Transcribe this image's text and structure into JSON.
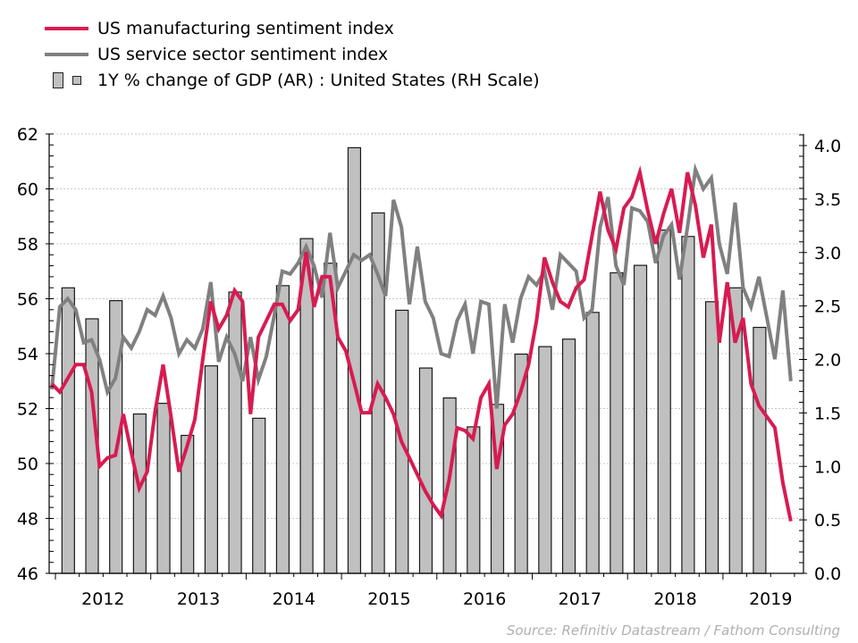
{
  "legend": {
    "items": [
      {
        "label": "US manufacturing sentiment index",
        "type": "line",
        "color": "#d81b52"
      },
      {
        "label": "US service sector sentiment index",
        "type": "line",
        "color": "#808080"
      },
      {
        "label": "1Y % change of GDP (AR) : United States (RH Scale)",
        "type": "bar",
        "color": "#c0c0c0"
      }
    ]
  },
  "source": "Source: Refinitiv Datastream / Fathom Consulting",
  "chart_data": {
    "type": "bar+line",
    "title": "",
    "xlabel": "",
    "ylabel_left": "",
    "ylabel_right": "",
    "x_range": [
      "2011-12",
      "2019-09"
    ],
    "x_tick_labels": [
      "2012",
      "2013",
      "2014",
      "2015",
      "2016",
      "2017",
      "2018",
      "2019"
    ],
    "y_left": {
      "range": [
        46,
        62
      ],
      "ticks": [
        46,
        48,
        50,
        52,
        54,
        56,
        58,
        60,
        62
      ],
      "tick_labels": [
        "46",
        "48",
        "50",
        "52",
        "54",
        "56",
        "58",
        "60",
        "62"
      ]
    },
    "y_right": {
      "range": [
        0,
        4.1
      ],
      "ticks": [
        0,
        0.5,
        1,
        1.5,
        2,
        2.5,
        3,
        3.5,
        4
      ],
      "tick_labels": [
        "0.0",
        "0.5",
        "1.0",
        "1.5",
        "2.0",
        "2.5",
        "3.0",
        "3.5",
        "4.0"
      ]
    },
    "grid": "horizontal dotted",
    "legend_position": "top-left",
    "line_x_start": "2011-12",
    "line_frequency": "monthly",
    "series": [
      {
        "name": "US manufacturing sentiment index",
        "axis": "left",
        "kind": "line",
        "color": "#d81b52",
        "values": [
          52.9,
          52.6,
          53.1,
          53.6,
          53.6,
          52.6,
          49.9,
          50.2,
          50.3,
          51.8,
          50.4,
          49.1,
          49.7,
          51.9,
          53.6,
          51.7,
          49.7,
          50.6,
          51.6,
          53.8,
          55.9,
          54.9,
          55.4,
          56.3,
          55.9,
          51.8,
          54.6,
          55.2,
          55.8,
          55.8,
          55.2,
          55.6,
          57.7,
          55.7,
          56.8,
          56.8,
          54.6,
          54.1,
          53.0,
          51.85,
          51.85,
          52.9,
          52.4,
          51.8,
          50.8,
          50.2,
          49.6,
          49.0,
          48.5,
          48.1,
          49.4,
          51.3,
          51.2,
          50.9,
          52.4,
          52.9,
          49.8,
          51.4,
          51.8,
          52.6,
          53.6,
          55.2,
          57.5,
          56.6,
          55.9,
          55.7,
          56.4,
          56.7,
          58.3,
          59.9,
          58.5,
          57.8,
          59.3,
          59.7,
          60.6,
          59.2,
          58.0,
          59.1,
          60.0,
          58.4,
          60.6,
          59.4,
          57.5,
          58.7,
          54.4,
          56.6,
          54.4,
          55.3,
          52.9,
          52.1,
          51.7,
          51.3,
          49.3,
          47.9
        ]
      },
      {
        "name": "US service sector sentiment index",
        "axis": "left",
        "kind": "line",
        "color": "#808080",
        "values": [
          52.7,
          55.7,
          56.0,
          55.6,
          54.4,
          54.5,
          53.8,
          52.6,
          53.1,
          54.6,
          54.2,
          54.8,
          55.6,
          55.4,
          56.1,
          55.3,
          54.0,
          54.5,
          54.2,
          54.9,
          56.6,
          53.7,
          54.6,
          54.0,
          53.0,
          54.6,
          53.05,
          53.9,
          55.4,
          57.0,
          56.9,
          57.3,
          57.9,
          57.2,
          56.05,
          58.4,
          56.4,
          57.0,
          57.6,
          57.4,
          57.6,
          56.9,
          56.1,
          59.6,
          58.6,
          55.8,
          57.9,
          55.9,
          55.3,
          54.0,
          53.9,
          55.2,
          55.8,
          54.0,
          55.9,
          55.8,
          52.0,
          55.8,
          54.4,
          56.0,
          56.8,
          56.5,
          57.0,
          55.6,
          57.6,
          57.3,
          57.0,
          55.3,
          55.6,
          58.6,
          59.7,
          57.2,
          56.5,
          59.3,
          59.2,
          58.8,
          57.3,
          58.3,
          58.7,
          56.7,
          58.6,
          60.7,
          60.0,
          60.4,
          58.0,
          56.9,
          59.5,
          56.4,
          55.7,
          56.8,
          55.3,
          53.8,
          56.3,
          53.0
        ]
      },
      {
        "name": "1Y % change of GDP (AR) : United States (RH Scale)",
        "axis": "right",
        "kind": "bar",
        "color": "#c0c0c0",
        "categories": [
          "2012Q1",
          "2012Q2",
          "2012Q3",
          "2012Q4",
          "2013Q1",
          "2013Q2",
          "2013Q3",
          "2013Q4",
          "2014Q1",
          "2014Q2",
          "2014Q3",
          "2014Q4",
          "2015Q1",
          "2015Q2",
          "2015Q3",
          "2015Q4",
          "2016Q1",
          "2016Q2",
          "2016Q3",
          "2016Q4",
          "2017Q1",
          "2017Q2",
          "2017Q3",
          "2017Q4",
          "2018Q1",
          "2018Q2",
          "2018Q3",
          "2018Q4",
          "2019Q1",
          "2019Q2"
        ],
        "values": [
          2.67,
          2.38,
          2.55,
          1.49,
          1.59,
          1.29,
          1.94,
          2.63,
          1.45,
          2.69,
          3.13,
          2.9,
          3.98,
          3.37,
          2.46,
          1.92,
          1.64,
          1.37,
          1.58,
          2.05,
          2.12,
          2.19,
          2.44,
          2.81,
          2.88,
          3.21,
          3.15,
          2.54,
          2.67,
          2.3
        ]
      }
    ]
  }
}
